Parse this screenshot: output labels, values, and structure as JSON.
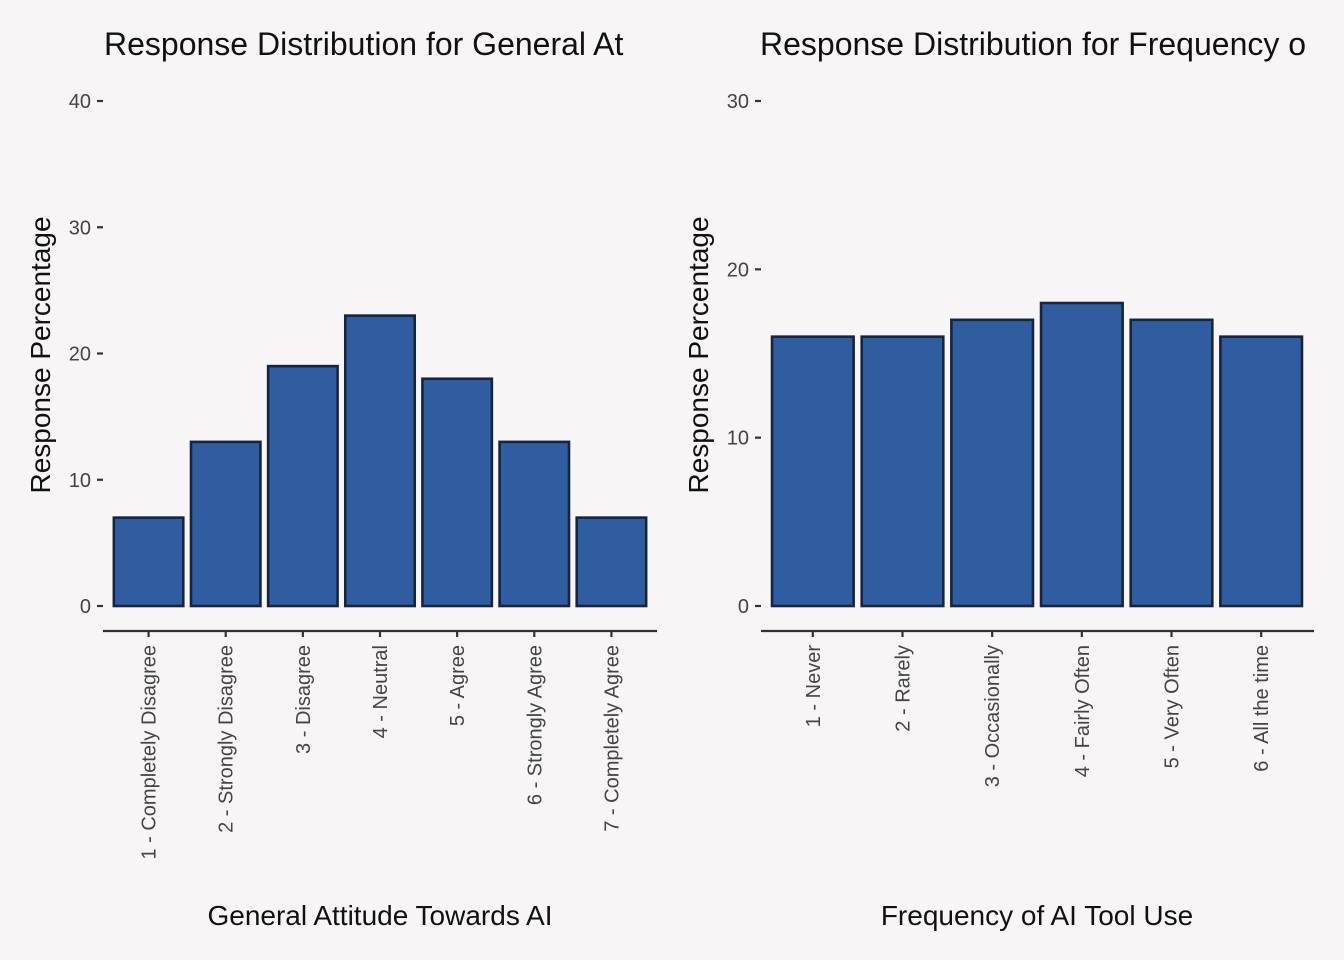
{
  "colors": {
    "bar_fill": "#305da0",
    "bar_stroke": "#16243f",
    "background": "#f7f5f6"
  },
  "chart_data": [
    {
      "type": "bar",
      "title": "Response Distribution for General At",
      "xlabel": "General Attitude Towards AI",
      "ylabel": "Response Percentage",
      "ylim": [
        0,
        40
      ],
      "yticks": [
        0,
        10,
        20,
        30,
        40
      ],
      "grid": false,
      "categories": [
        "1 - Completely Disagree",
        "2 - Strongly Disagree",
        "3 - Disagree",
        "4 - Neutral",
        "5 - Agree",
        "6 - Strongly Agree",
        "7 - Completely Agree"
      ],
      "values": [
        7,
        13,
        19,
        23,
        18,
        13,
        7
      ]
    },
    {
      "type": "bar",
      "title": "Response Distribution for Frequency o",
      "xlabel": "Frequency of AI Tool Use",
      "ylabel": "Response Percentage",
      "ylim": [
        0,
        30
      ],
      "yticks": [
        0,
        10,
        20,
        30
      ],
      "grid": false,
      "categories": [
        "1 - Never",
        "2 - Rarely",
        "3 - Occasionally",
        "4 - Fairly Often",
        "5 - Very Often",
        "6 - All the time"
      ],
      "values": [
        16,
        16,
        17,
        18,
        17,
        16
      ]
    }
  ]
}
